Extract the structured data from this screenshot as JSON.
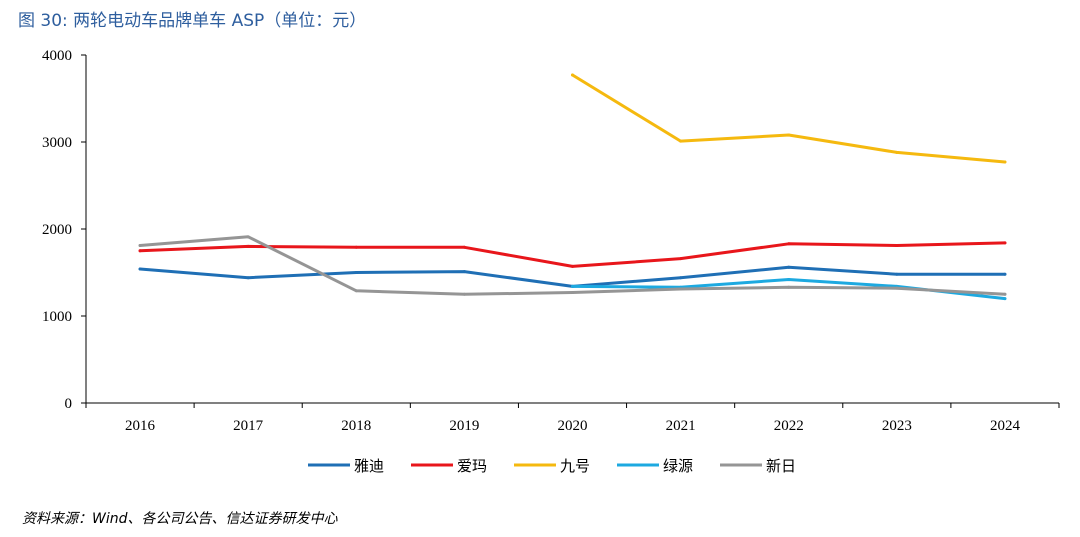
{
  "figure": {
    "title": "图 30:  两轮电动车品牌单车 ASP（单位：元）",
    "source": "资料来源：Wind、各公司公告、信达证券研发中心"
  },
  "chart_data": {
    "type": "line",
    "title": "两轮电动车品牌单车 ASP（单位：元）",
    "xlabel": "",
    "ylabel": "",
    "categories": [
      "2016",
      "2017",
      "2018",
      "2019",
      "2020",
      "2021",
      "2022",
      "2023",
      "2024"
    ],
    "ylim": [
      0,
      4000
    ],
    "yticks": [
      0,
      1000,
      2000,
      3000,
      4000
    ],
    "grid": false,
    "legend_position": "bottom",
    "series": [
      {
        "name": "雅迪",
        "color": "#1F6FB5",
        "values": [
          1540,
          1440,
          1500,
          1510,
          1340,
          1440,
          1560,
          1480,
          1480
        ]
      },
      {
        "name": "爱玛",
        "color": "#E8161B",
        "values": [
          1750,
          1800,
          1790,
          1790,
          1570,
          1660,
          1830,
          1810,
          1840
        ]
      },
      {
        "name": "九号",
        "color": "#F5B90F",
        "values": [
          null,
          null,
          null,
          null,
          3770,
          3010,
          3080,
          2880,
          2770
        ]
      },
      {
        "name": "绿源",
        "color": "#1DA9E0",
        "values": [
          null,
          null,
          null,
          null,
          1340,
          1330,
          1420,
          1340,
          1200
        ]
      },
      {
        "name": "新日",
        "color": "#959595",
        "values": [
          1810,
          1910,
          1290,
          1250,
          1270,
          1310,
          1330,
          1320,
          1250
        ]
      }
    ]
  }
}
